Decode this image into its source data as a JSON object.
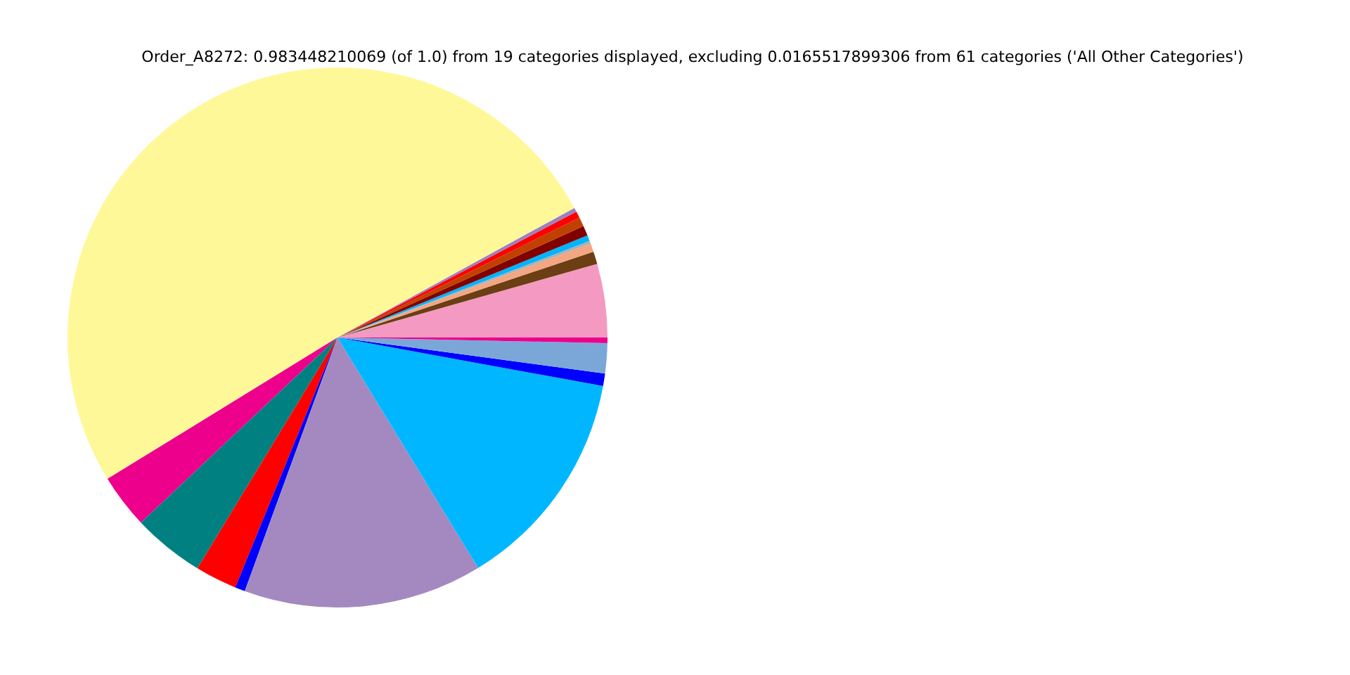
{
  "chart_data": {
    "type": "pie",
    "title": "Order_A8272: 0.983448210069 (of 1.0) from 19 categories displayed, excluding 0.0165517899306 from 61 categories ('All Other Categories')",
    "categories": [
      null,
      null,
      null,
      null,
      null,
      null,
      null,
      null,
      null,
      null,
      null,
      null,
      null,
      null,
      null,
      null,
      null,
      null,
      null
    ],
    "values": [
      4.4,
      0.75,
      0.5,
      0.17,
      0.35,
      0.6,
      0.55,
      0.4,
      0.25,
      50.8,
      3.25,
      4.3,
      2.5,
      0.6,
      14.3,
      13.4,
      0.75,
      1.8,
      0.33
    ],
    "colors": [
      "#f49ac2",
      "#6b3e13",
      "#f4a582",
      "#b0b0b0",
      "#00b4ff",
      "#800000",
      "#c04000",
      "#ff0000",
      "#9e7fc0",
      "#fff899",
      "#ec008c",
      "#008080",
      "#ff0000",
      "#0000ff",
      "#a389c0",
      "#00b7ff",
      "#0000ff",
      "#7ba7d8",
      "#ec008c"
    ],
    "legend": false
  }
}
